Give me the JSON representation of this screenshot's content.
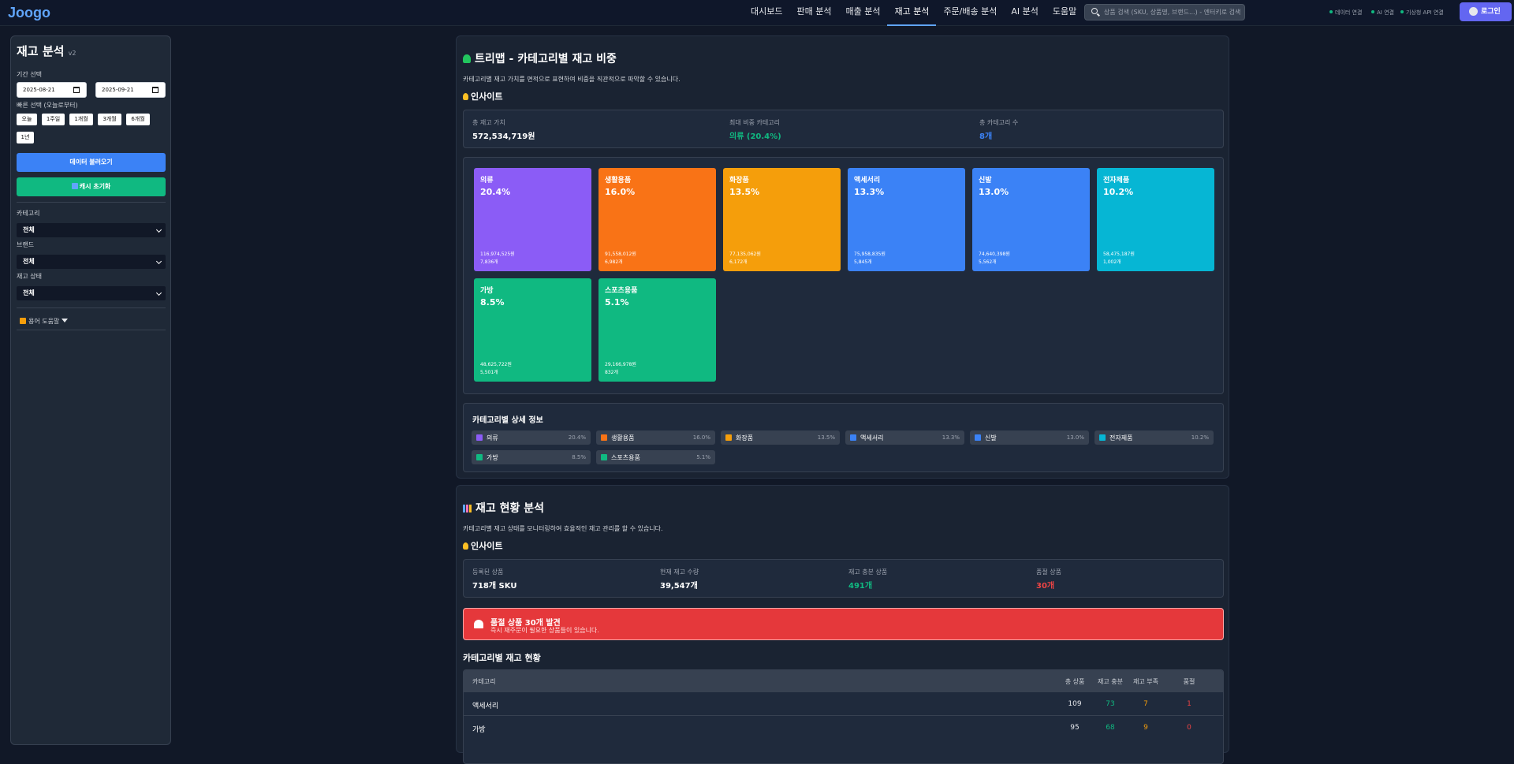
{
  "app": {
    "logo": "Joogo"
  },
  "nav": [
    "대시보드",
    "판매 분석",
    "매출 분석",
    "재고 분석",
    "주문/배송 분석",
    "AI 분석",
    "도움말"
  ],
  "search": {
    "placeholder": "상품 검색 (SKU, 상품명, 브랜드...) - 엔터키로 검색"
  },
  "status": {
    "data": "데이터 연결",
    "ai": "AI 연결",
    "weather": "기상청 API 연결"
  },
  "login": "로그인",
  "sidebar": {
    "title": "재고 분석",
    "version": "v2",
    "period_label": "기간 선택",
    "date_from": "2025-08-21",
    "date_to": "2025-09-21",
    "quick_label": "빠른 선택 (오늘로부터)",
    "quick": [
      "오늘",
      "1주일",
      "1개월",
      "3개월",
      "6개월",
      "1년"
    ],
    "load_btn": "데이터 불러오기",
    "reset_btn": "캐시 초기화",
    "category_label": "카테고리",
    "category_value": "전체",
    "brand_label": "브랜드",
    "brand_value": "전체",
    "stock_label": "재고 상태",
    "stock_value": "전체",
    "help": "용어 도움말"
  },
  "treemap": {
    "title": "트리맵 - 카테고리별 재고 비중",
    "desc": "카테고리별 재고 가치를 면적으로 표현하여 비중을 직관적으로 파악할 수 있습니다.",
    "insight_title": "인사이트",
    "stats": [
      {
        "label": "총 재고 가치",
        "value": "572,534,719원"
      },
      {
        "label": "최대 비중 카테고리",
        "value": "의류 (20.4%)"
      },
      {
        "label": "총 카테고리 수",
        "value": "8개"
      }
    ],
    "tiles": [
      {
        "name": "의류",
        "pct": "20.4%",
        "value": "116,974,525원",
        "count": "7,836개",
        "color": "#8b5cf6"
      },
      {
        "name": "생활용품",
        "pct": "16.0%",
        "value": "91,558,012원",
        "count": "6,982개",
        "color": "#f97316"
      },
      {
        "name": "화장품",
        "pct": "13.5%",
        "value": "77,135,062원",
        "count": "6,172개",
        "color": "#f59e0b"
      },
      {
        "name": "액세서리",
        "pct": "13.3%",
        "value": "75,958,835원",
        "count": "5,845개",
        "color": "#3b82f6"
      },
      {
        "name": "신발",
        "pct": "13.0%",
        "value": "74,640,398원",
        "count": "5,562개",
        "color": "#3b82f6"
      },
      {
        "name": "전자제품",
        "pct": "10.2%",
        "value": "58,475,187원",
        "count": "1,002개",
        "color": "#06b6d4"
      },
      {
        "name": "가방",
        "pct": "8.5%",
        "value": "48,625,722원",
        "count": "5,501개",
        "color": "#10b981"
      },
      {
        "name": "스포츠용품",
        "pct": "5.1%",
        "value": "29,166,978원",
        "count": "832개",
        "color": "#10b981"
      }
    ],
    "detail_title": "카테고리별 상세 정보"
  },
  "stock": {
    "title": "재고 현황 분석",
    "desc": "카테고리별 재고 상태를 모니터링하여 효율적인 재고 관리를 할 수 있습니다.",
    "insight_title": "인사이트",
    "stats": [
      {
        "label": "등록된 상품",
        "value": "718개 SKU"
      },
      {
        "label": "현재 재고 수량",
        "value": "39,547개"
      },
      {
        "label": "재고 충분 상품",
        "value": "491개"
      },
      {
        "label": "품절 상품",
        "value": "30개"
      }
    ],
    "alert_title": "품절 상품 30개 발견",
    "alert_desc": "즉시 재주문이 필요한 상품들이 있습니다.",
    "table_title": "카테고리별 재고 현황",
    "headers": [
      "카테고리",
      "총 상품",
      "재고 충분",
      "재고 부족",
      "품절"
    ],
    "rows": [
      {
        "cat": "액세서리",
        "total": "109",
        "ok": "73",
        "low": "7",
        "out": "1"
      },
      {
        "cat": "가방",
        "total": "95",
        "ok": "68",
        "low": "9",
        "out": "0"
      }
    ]
  }
}
